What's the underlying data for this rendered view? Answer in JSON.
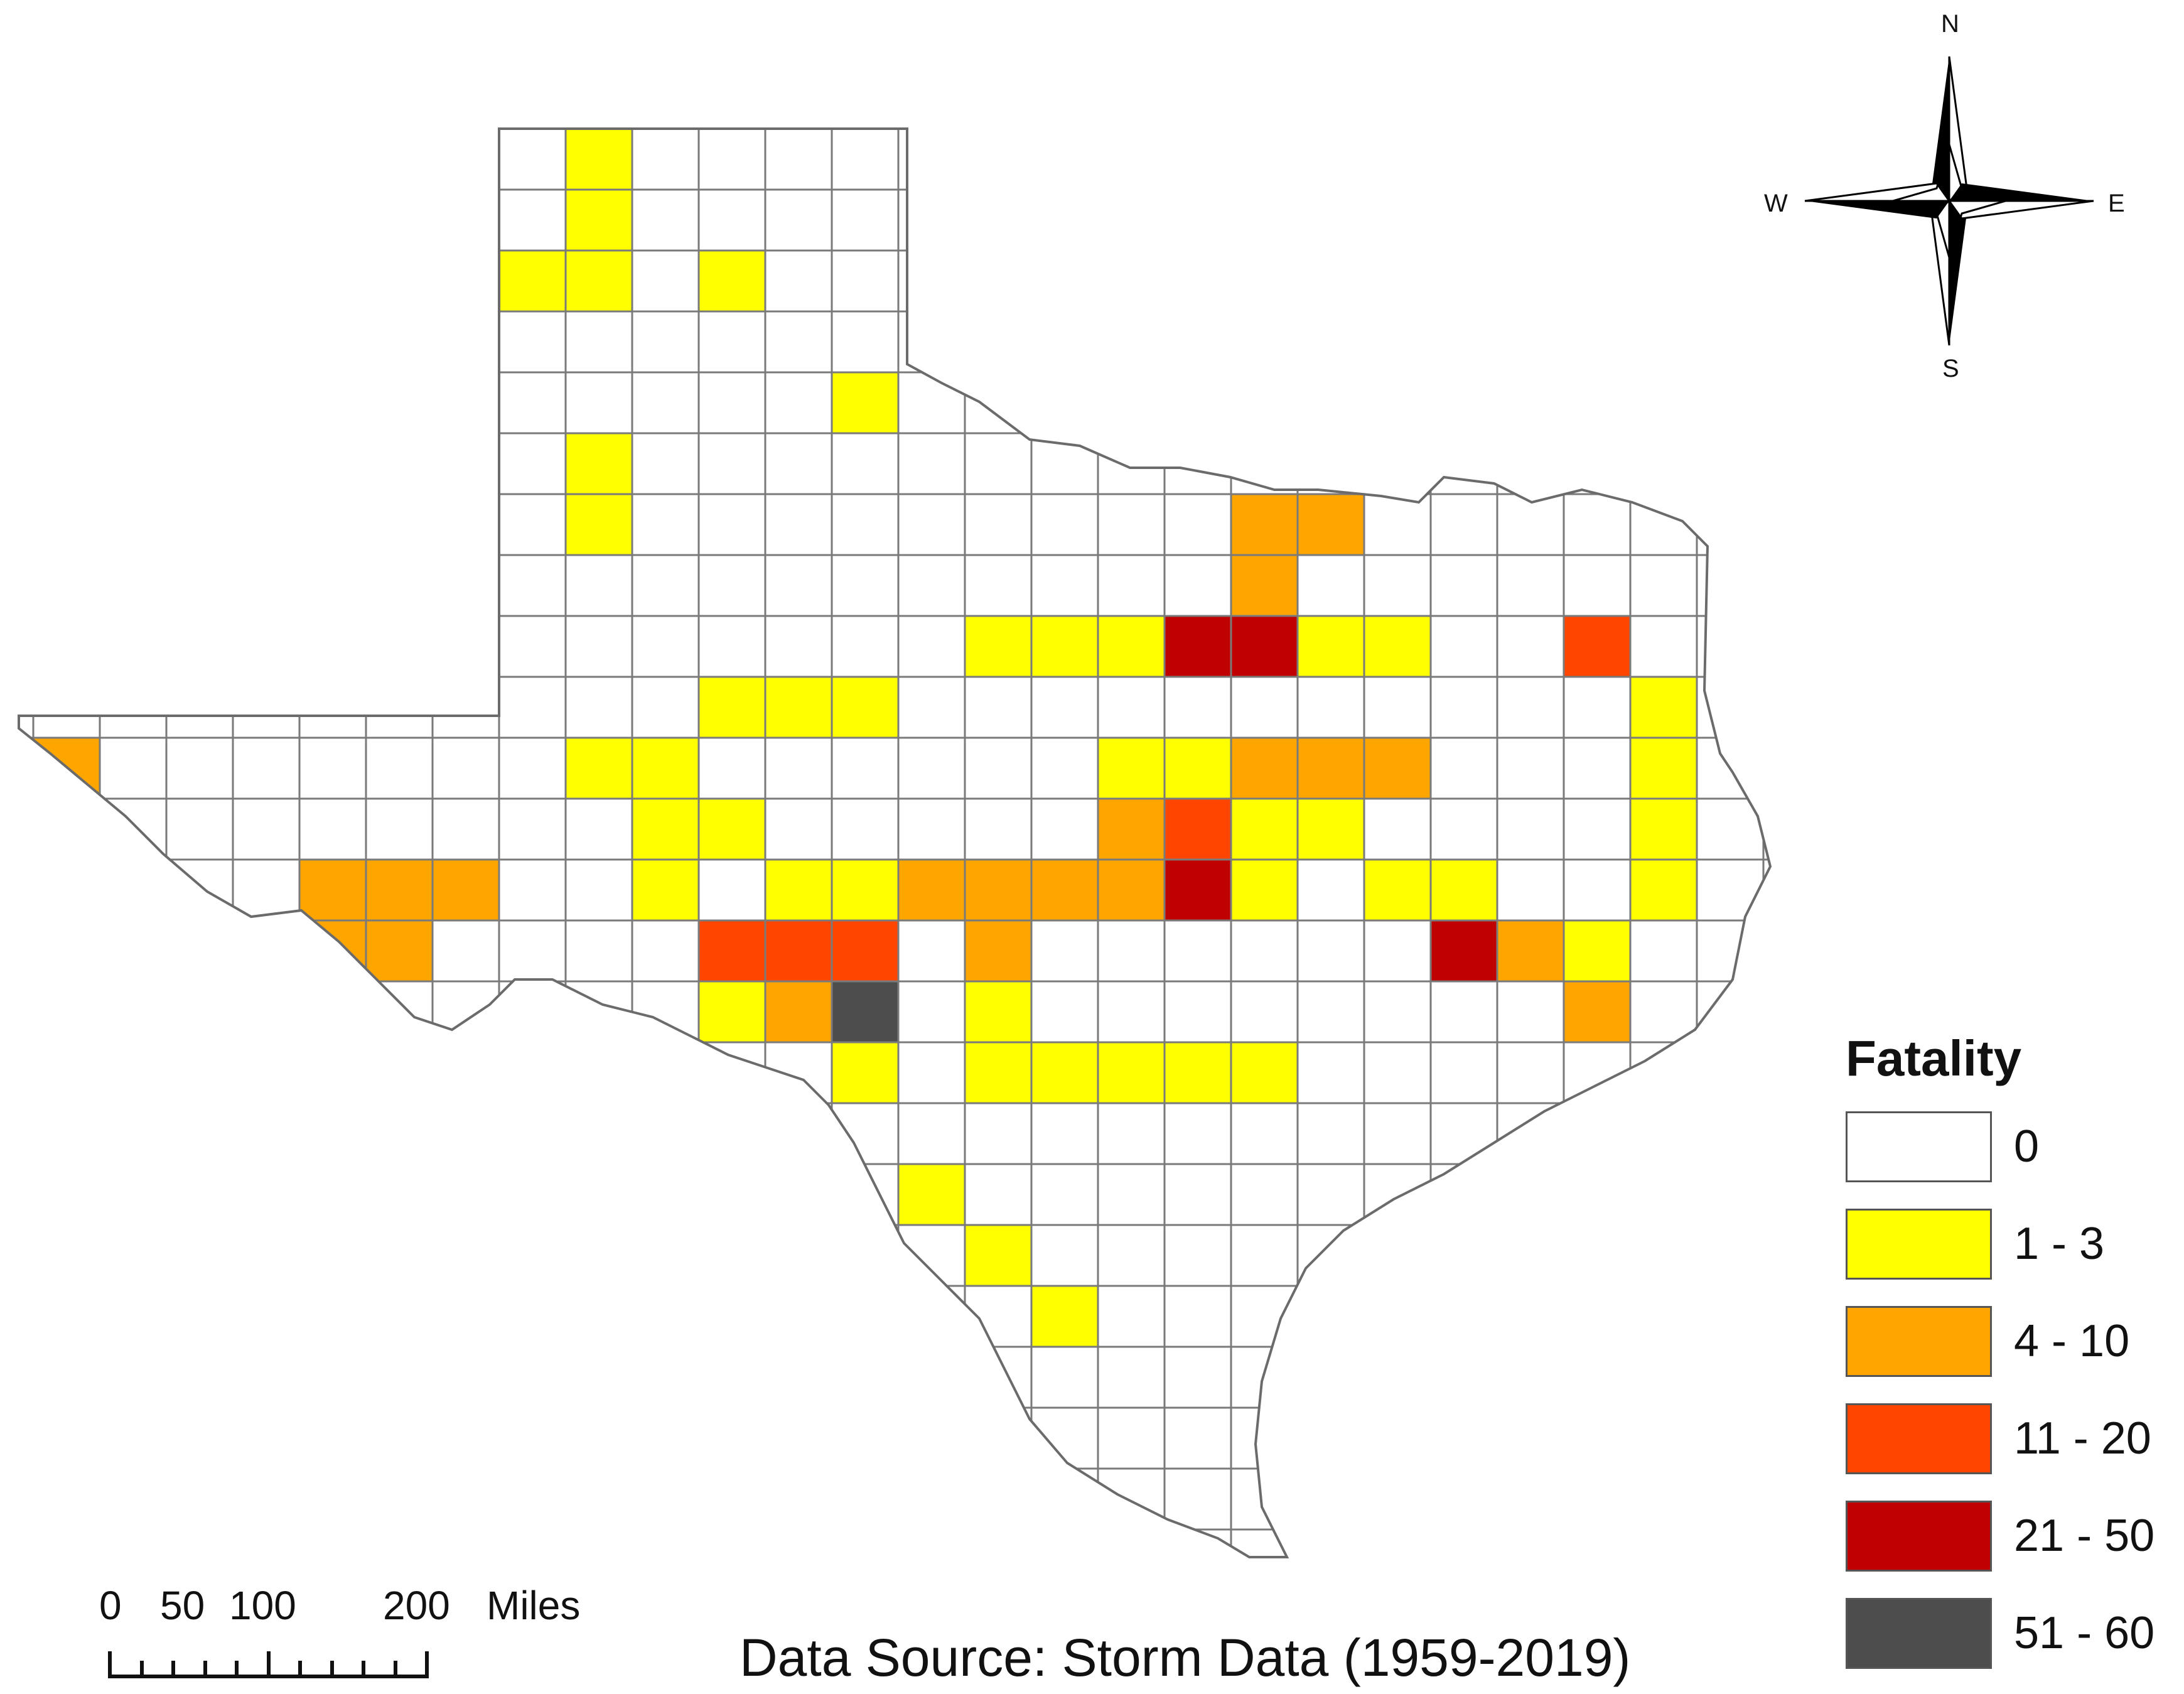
{
  "legend": {
    "title": "Fatality",
    "classes": [
      {
        "label": "0",
        "color": "#ffffff"
      },
      {
        "label": "1 - 3",
        "color": "#ffff00"
      },
      {
        "label": "4 - 10",
        "color": "#ffa500"
      },
      {
        "label": "11 - 20",
        "color": "#ff4500"
      },
      {
        "label": "21 - 50",
        "color": "#c00000"
      },
      {
        "label": "51 - 60",
        "color": "#4d4d4d"
      }
    ]
  },
  "source": "Data Source: Storm Data (1959-2019)",
  "compass": {
    "n": "N",
    "s": "S",
    "e": "E",
    "w": "W"
  },
  "scale_bar": {
    "ticks": [
      "0",
      "50",
      "100",
      "200"
    ],
    "unit": "Miles"
  },
  "icons": [
    "north-arrow-icon",
    "scale-bar-icon"
  ]
}
